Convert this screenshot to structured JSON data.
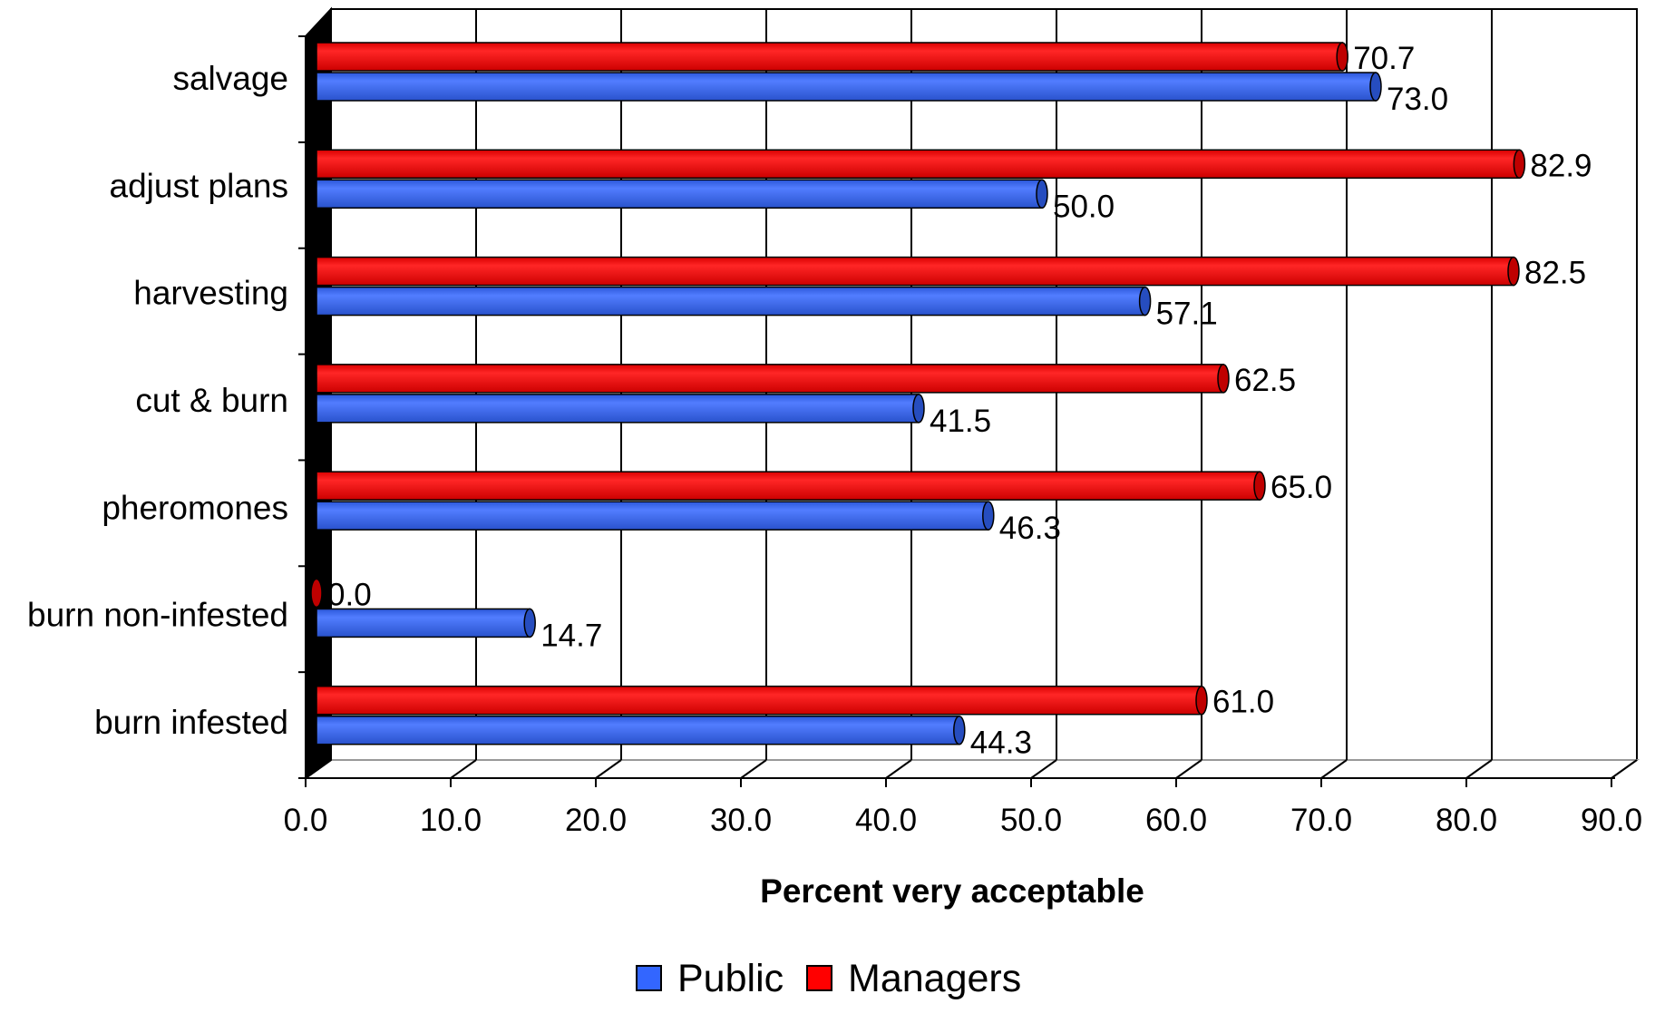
{
  "chart_data": {
    "type": "bar",
    "orientation": "horizontal",
    "style": "3d-cylinder",
    "categories": [
      "salvage",
      "adjust plans",
      "harvesting",
      "cut & burn",
      "pheromones",
      "burn non-infested",
      "burn infested"
    ],
    "series": [
      {
        "name": "Managers",
        "color": "#ff0000",
        "values": [
          70.7,
          82.9,
          82.5,
          62.5,
          65.0,
          0.0,
          61.0
        ],
        "labels": [
          "70.7",
          "82.9",
          "82.5",
          "62.5",
          "65.0",
          "0.0",
          "61.0"
        ]
      },
      {
        "name": "Public",
        "color": "#3366ff",
        "values": [
          73.0,
          50.0,
          57.1,
          41.5,
          46.3,
          14.7,
          44.3
        ],
        "labels": [
          "73.0",
          "50.0",
          "57.1",
          "41.5",
          "46.3",
          "14.7",
          "44.3"
        ]
      }
    ],
    "xlabel": "Percent very acceptable",
    "ylabel": "",
    "xlim": [
      0,
      90
    ],
    "xticks": [
      0,
      10,
      20,
      30,
      40,
      50,
      60,
      70,
      80,
      90
    ],
    "xtick_labels": [
      "0.0",
      "10.0",
      "20.0",
      "30.0",
      "40.0",
      "50.0",
      "60.0",
      "70.0",
      "80.0",
      "90.0"
    ],
    "grid": "vertical",
    "legend": {
      "position": "bottom",
      "order": [
        "Public",
        "Managers"
      ]
    }
  }
}
